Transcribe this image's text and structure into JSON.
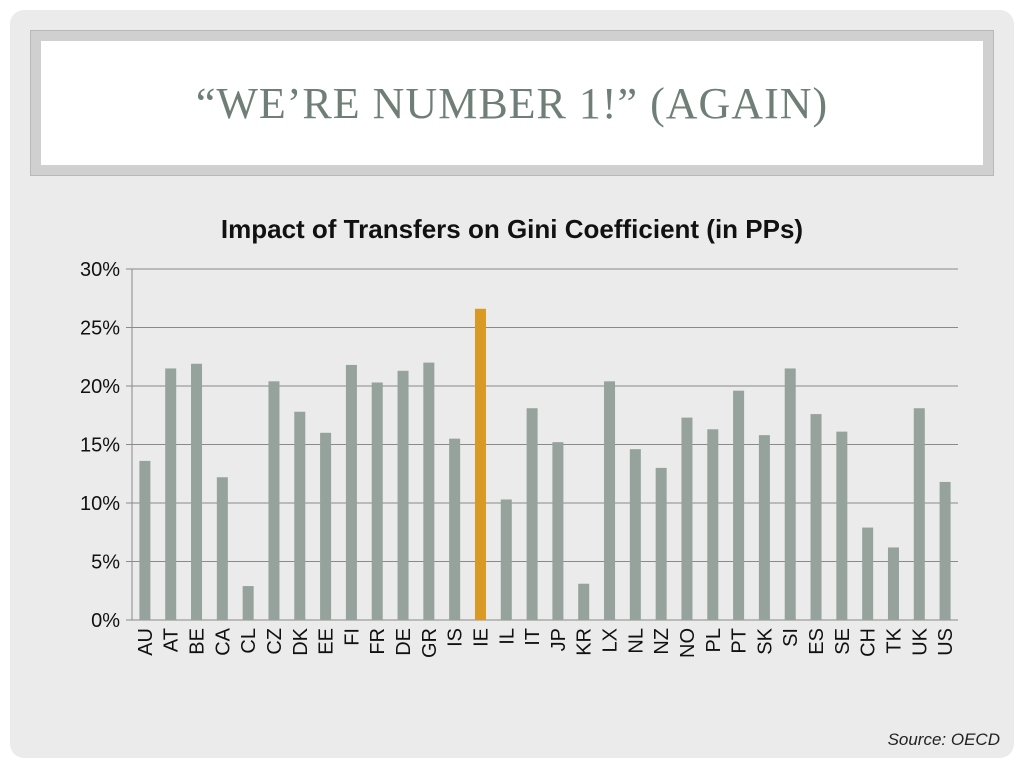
{
  "slide": {
    "title": "“WE’RE NUMBER 1!” (AGAIN)",
    "source": "Source: OECD"
  },
  "colors": {
    "bar": "#95a39c",
    "highlight": "#d99a25",
    "grid": "#8a8a8a",
    "text": "#111111"
  },
  "chart_data": {
    "type": "bar",
    "title": "Impact of Transfers on Gini Coefficient (in PPs)",
    "xlabel": "",
    "ylabel": "",
    "ylim": [
      0,
      30
    ],
    "yticks": [
      "0%",
      "5%",
      "10%",
      "15%",
      "20%",
      "25%",
      "30%"
    ],
    "ytick_values": [
      0,
      5,
      10,
      15,
      20,
      25,
      30
    ],
    "grid": true,
    "categories": [
      "AU",
      "AT",
      "BE",
      "CA",
      "CL",
      "CZ",
      "DK",
      "EE",
      "FI",
      "FR",
      "DE",
      "GR",
      "IS",
      "IE",
      "IL",
      "IT",
      "JP",
      "KR",
      "LX",
      "NL",
      "NZ",
      "NO",
      "PL",
      "PT",
      "SK",
      "SI",
      "ES",
      "SE",
      "CH",
      "TK",
      "UK",
      "US"
    ],
    "values": [
      13.6,
      21.5,
      21.9,
      12.2,
      2.9,
      20.4,
      17.8,
      16.0,
      21.8,
      20.3,
      21.3,
      22.0,
      15.5,
      26.6,
      10.3,
      18.1,
      15.2,
      3.1,
      20.4,
      14.6,
      13.0,
      17.3,
      16.3,
      19.6,
      15.8,
      21.5,
      17.6,
      16.1,
      7.9,
      6.2,
      18.1,
      11.8
    ],
    "highlight_index": 13
  }
}
